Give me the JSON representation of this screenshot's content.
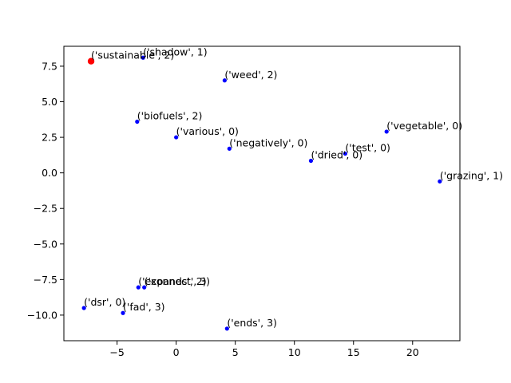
{
  "chart_data": {
    "type": "scatter",
    "title": "",
    "xlabel": "",
    "ylabel": "",
    "xlim": [
      -9.5,
      24
    ],
    "ylim": [
      -11.8,
      8.9
    ],
    "xticks": [
      -5,
      0,
      5,
      10,
      15,
      20
    ],
    "yticks": [
      -10.0,
      -7.5,
      -5.0,
      -2.5,
      0.0,
      2.5,
      5.0,
      7.5
    ],
    "xtick_labels": [
      "−5",
      "0",
      "5",
      "10",
      "15",
      "20"
    ],
    "ytick_labels": [
      "−10.0",
      "−7.5",
      "−5.0",
      "−2.5",
      "0.0",
      "2.5",
      "5.0",
      "7.5"
    ],
    "grid": false,
    "colors": {
      "default_point": "#0000ff",
      "highlight_point": "#ff0000"
    },
    "points": [
      {
        "label": "('sustainable', 2)",
        "x": -7.2,
        "y": 7.85,
        "highlight": true
      },
      {
        "label": "('shadow', 1)",
        "x": -2.8,
        "y": 8.1,
        "highlight": false
      },
      {
        "label": "('weed', 2)",
        "x": 4.1,
        "y": 6.5,
        "highlight": false
      },
      {
        "label": "('biofuels', 2)",
        "x": -3.3,
        "y": 3.6,
        "highlight": false
      },
      {
        "label": "('various', 0)",
        "x": 0.0,
        "y": 2.5,
        "highlight": false
      },
      {
        "label": "('vegetable', 0)",
        "x": 17.8,
        "y": 2.9,
        "highlight": false
      },
      {
        "label": "('negatively', 0)",
        "x": 4.5,
        "y": 1.7,
        "highlight": false
      },
      {
        "label": "('test', 0)",
        "x": 14.3,
        "y": 1.35,
        "highlight": false
      },
      {
        "label": "('dried', 0)",
        "x": 11.4,
        "y": 0.85,
        "highlight": false
      },
      {
        "label": "('grazing', 1)",
        "x": 22.3,
        "y": -0.6,
        "highlight": false
      },
      {
        "label": "('expands', 2)",
        "x": -3.2,
        "y": -8.05,
        "highlight": false
      },
      {
        "label": "('connect', 3)",
        "x": -2.7,
        "y": -8.05,
        "highlight": false
      },
      {
        "label": "('dsr', 0)",
        "x": -7.8,
        "y": -9.5,
        "highlight": false
      },
      {
        "label": "('fad', 3)",
        "x": -4.5,
        "y": -9.85,
        "highlight": false
      },
      {
        "label": "('ends', 3)",
        "x": 4.3,
        "y": -10.95,
        "highlight": false
      }
    ]
  }
}
